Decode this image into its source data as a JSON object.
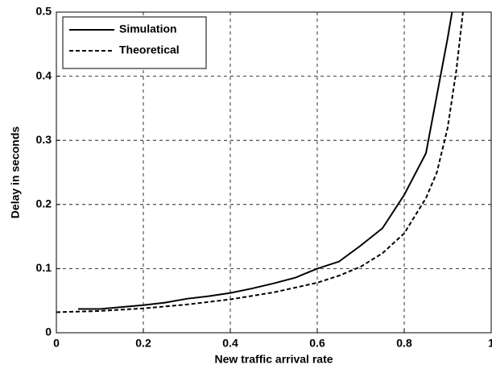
{
  "chart_data": {
    "type": "line",
    "xlabel": "New traffic arrival rate",
    "ylabel": "Delay in seconds",
    "xlim": [
      0,
      1
    ],
    "xticks": [
      0,
      0.2,
      0.4,
      0.6,
      0.8,
      1
    ],
    "ylim": [
      0,
      0.5
    ],
    "yticks": [
      0,
      0.1,
      0.2,
      0.3,
      0.4,
      0.5
    ],
    "grid": true,
    "legend": "upper left",
    "series": [
      {
        "name": "Simulation",
        "color": "#000000",
        "dash": "solid",
        "x": [
          0.05,
          0.1,
          0.15,
          0.2,
          0.25,
          0.3,
          0.35,
          0.4,
          0.45,
          0.5,
          0.55,
          0.6,
          0.65,
          0.7,
          0.75,
          0.8,
          0.85,
          0.9,
          0.91
        ],
        "values": [
          0.037,
          0.037,
          0.04,
          0.043,
          0.047,
          0.053,
          0.057,
          0.062,
          0.069,
          0.077,
          0.086,
          0.1,
          0.111,
          0.136,
          0.163,
          0.215,
          0.28,
          0.46,
          0.5
        ]
      },
      {
        "name": "Theoretical",
        "color": "#000000",
        "dash": "dashed",
        "x": [
          0,
          0.1,
          0.2,
          0.3,
          0.4,
          0.5,
          0.6,
          0.65,
          0.7,
          0.75,
          0.8,
          0.85,
          0.875,
          0.9,
          0.92,
          0.935
        ],
        "values": [
          0.032,
          0.034,
          0.038,
          0.044,
          0.052,
          0.063,
          0.078,
          0.089,
          0.103,
          0.124,
          0.155,
          0.21,
          0.25,
          0.32,
          0.41,
          0.5
        ]
      }
    ]
  }
}
